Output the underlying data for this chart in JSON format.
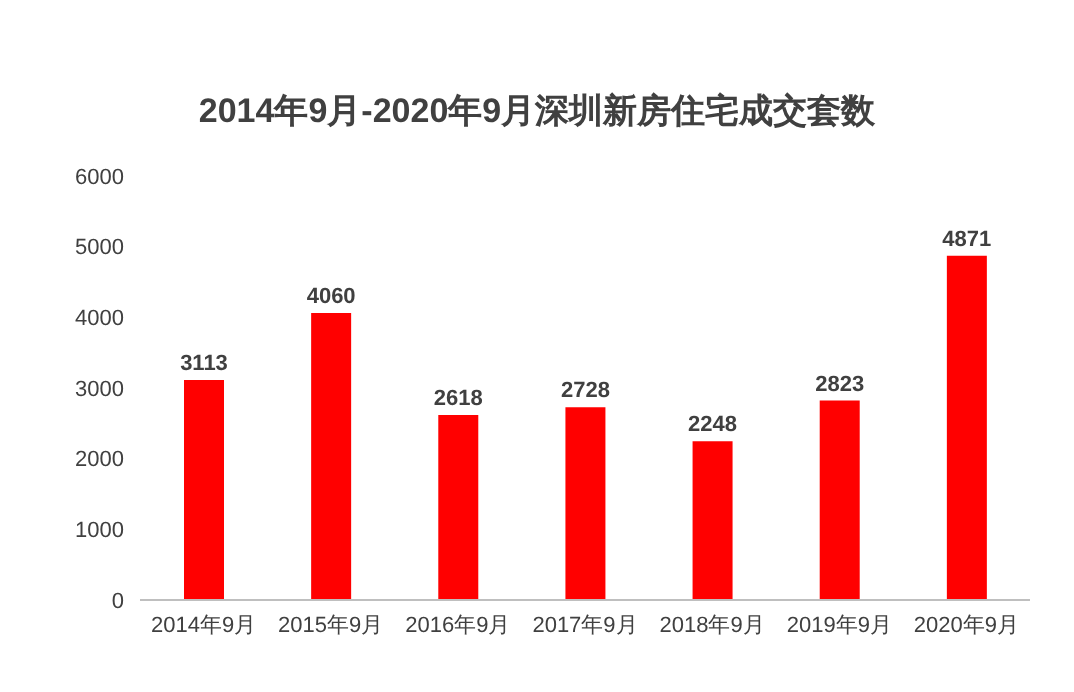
{
  "chart_data": {
    "type": "bar",
    "title": "2014年9月-2020年9月深圳新房住宅成交套数",
    "categories": [
      "2014年9月",
      "2015年9月",
      "2016年9月",
      "2017年9月",
      "2018年9月",
      "2019年9月",
      "2020年9月"
    ],
    "values": [
      3113,
      4060,
      2618,
      2728,
      2248,
      2823,
      4871
    ],
    "color": "#ff0000",
    "ylim": [
      0,
      6000
    ],
    "yticks": [
      0,
      1000,
      2000,
      3000,
      4000,
      5000,
      6000
    ],
    "grid": false,
    "data_labels": true
  }
}
